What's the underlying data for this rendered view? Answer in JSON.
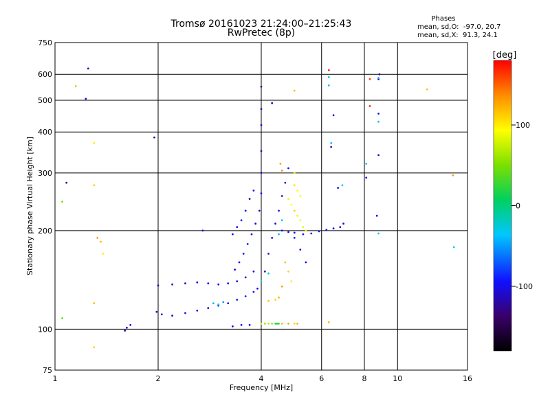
{
  "header": {
    "title_line1": "Tromsø 20161023 21:24:00–21:25:43",
    "title_line2": "RwPretec (8p)"
  },
  "phases": {
    "heading": "Phases",
    "o_line": "mean, sd,O:  -97.0, 20.7",
    "x_line": "mean, sd,X:  91.3, 24.1"
  },
  "chart_data": {
    "type": "scatter",
    "title": "Tromsø 20161023 21:24:00–21:25:43",
    "subtitle": "RwPretec (8p)",
    "xlabel": "Frequency [MHz]",
    "ylabel": "Stationary phase Virtual Height [km]",
    "x_scale": "log",
    "y_scale": "log",
    "xlim": [
      1,
      16
    ],
    "ylim": [
      75,
      750
    ],
    "x_ticks": [
      1,
      2,
      4,
      6,
      8,
      10,
      16
    ],
    "x_tick_labels": [
      "1",
      "2",
      "4",
      "6",
      "8",
      "10",
      "16"
    ],
    "y_ticks": [
      75,
      100,
      200,
      300,
      400,
      500,
      600,
      750
    ],
    "y_tick_labels": [
      "75",
      "100",
      "200",
      "300",
      "400",
      "500",
      "600",
      "750"
    ],
    "x_gridlines": [
      1,
      2,
      4,
      6,
      8,
      10,
      16
    ],
    "y_gridlines": [
      100,
      200,
      300,
      400,
      500,
      600
    ],
    "grid": true,
    "colorbar": {
      "label": "[deg]",
      "range": [
        -180,
        180
      ],
      "ticks": [
        100,
        0,
        -100
      ],
      "tick_labels": [
        "100",
        "0",
        "-100"
      ]
    },
    "series": [
      {
        "mode": "O",
        "color_hint": "blue",
        "points": [
          [
            1.6,
            99,
            -120
          ],
          [
            1.62,
            101,
            -110
          ],
          [
            1.66,
            103,
            -95
          ],
          [
            1.98,
            113,
            -110
          ],
          [
            2.05,
            111,
            -100
          ],
          [
            2.2,
            110,
            -105
          ],
          [
            2.4,
            112,
            -100
          ],
          [
            2.6,
            114,
            -95
          ],
          [
            2.8,
            116,
            -100
          ],
          [
            3.0,
            118,
            -90
          ],
          [
            3.2,
            120,
            -95
          ],
          [
            3.4,
            123,
            -100
          ],
          [
            3.6,
            126,
            -90
          ],
          [
            3.8,
            130,
            -95
          ],
          [
            3.9,
            133,
            -100
          ],
          [
            2.0,
            136,
            -100
          ],
          [
            2.2,
            137,
            -110
          ],
          [
            2.4,
            138,
            -105
          ],
          [
            2.6,
            139,
            -100
          ],
          [
            2.8,
            138,
            -95
          ],
          [
            3.0,
            137,
            -100
          ],
          [
            3.2,
            138,
            -90
          ],
          [
            3.4,
            140,
            -100
          ],
          [
            3.6,
            144,
            -110
          ],
          [
            3.8,
            150,
            -95
          ],
          [
            3.35,
            152,
            -100
          ],
          [
            3.45,
            160,
            -105
          ],
          [
            3.55,
            170,
            -100
          ],
          [
            3.65,
            182,
            -90
          ],
          [
            3.75,
            195,
            -100
          ],
          [
            3.85,
            210,
            -110
          ],
          [
            3.95,
            230,
            -100
          ],
          [
            4.0,
            260,
            -95
          ],
          [
            4.0,
            300,
            -100
          ],
          [
            4.0,
            350,
            -110
          ],
          [
            4.0,
            420,
            -100
          ],
          [
            4.0,
            470,
            -120
          ],
          [
            4.0,
            550,
            -130
          ],
          [
            3.3,
            195,
            -105
          ],
          [
            3.4,
            205,
            -100
          ],
          [
            3.5,
            215,
            -90
          ],
          [
            3.6,
            230,
            -100
          ],
          [
            3.7,
            250,
            -110
          ],
          [
            3.8,
            265,
            -100
          ],
          [
            4.1,
            150,
            -100
          ],
          [
            4.2,
            170,
            -95
          ],
          [
            4.3,
            190,
            -100
          ],
          [
            4.4,
            210,
            -105
          ],
          [
            4.5,
            230,
            -100
          ],
          [
            4.6,
            255,
            -110
          ],
          [
            4.7,
            280,
            -100
          ],
          [
            4.8,
            310,
            -95
          ],
          [
            4.6,
            200,
            -100
          ],
          [
            4.8,
            198,
            -105
          ],
          [
            5.0,
            197,
            -100
          ],
          [
            5.3,
            195,
            -95
          ],
          [
            5.6,
            196,
            -100
          ],
          [
            5.9,
            199,
            -105
          ],
          [
            6.2,
            201,
            -100
          ],
          [
            6.5,
            203,
            -95
          ],
          [
            6.8,
            205,
            -100
          ],
          [
            6.95,
            210,
            -110
          ],
          [
            5.0,
            190,
            -90
          ],
          [
            5.2,
            175,
            -95
          ],
          [
            5.4,
            160,
            -100
          ],
          [
            3.5,
            103,
            -100
          ],
          [
            3.7,
            103,
            -110
          ],
          [
            3.3,
            102,
            -105
          ],
          [
            1.08,
            280,
            -120
          ],
          [
            1.25,
            625,
            -110
          ],
          [
            1.23,
            505,
            -100
          ],
          [
            1.95,
            385,
            -120
          ],
          [
            2.7,
            200,
            -100
          ],
          [
            4.3,
            490,
            -110
          ],
          [
            6.5,
            450,
            -100
          ],
          [
            6.4,
            360,
            -110
          ],
          [
            6.7,
            270,
            -95
          ],
          [
            8.1,
            290,
            -100
          ],
          [
            8.8,
            340,
            -110
          ],
          [
            8.8,
            455,
            -100
          ],
          [
            8.8,
            580,
            -120
          ],
          [
            8.7,
            222,
            -100
          ],
          [
            8.85,
            600,
            -130
          ]
        ]
      },
      {
        "mode": "X",
        "color_hint": "yellow-orange",
        "points": [
          [
            4.55,
            320,
            130
          ],
          [
            4.6,
            305,
            135
          ],
          [
            4.8,
            250,
            100
          ],
          [
            4.9,
            240,
            95
          ],
          [
            5.0,
            230,
            110
          ],
          [
            5.1,
            222,
            100
          ],
          [
            5.2,
            215,
            90
          ],
          [
            5.3,
            205,
            85
          ],
          [
            5.4,
            200,
            100
          ],
          [
            4.7,
            160,
            120
          ],
          [
            4.8,
            150,
            110
          ],
          [
            4.9,
            140,
            100
          ],
          [
            4.6,
            135,
            130
          ],
          [
            4.5,
            125,
            120
          ],
          [
            4.4,
            123,
            110
          ],
          [
            4.2,
            122,
            115
          ],
          [
            5.0,
            275,
            105
          ],
          [
            5.1,
            265,
            95
          ],
          [
            5.2,
            255,
            90
          ],
          [
            5.0,
            300,
            100
          ],
          [
            4.0,
            104,
            80
          ],
          [
            4.1,
            104,
            60
          ],
          [
            4.2,
            104,
            70
          ],
          [
            4.3,
            104,
            60
          ],
          [
            4.6,
            104,
            120
          ],
          [
            4.8,
            104,
            130
          ],
          [
            5.0,
            104,
            110
          ],
          [
            5.1,
            104,
            125
          ],
          [
            1.3,
            370,
            100
          ],
          [
            1.3,
            275,
            110
          ],
          [
            1.33,
            190,
            130
          ],
          [
            1.36,
            185,
            120
          ],
          [
            1.38,
            170,
            100
          ],
          [
            1.3,
            120,
            120
          ],
          [
            1.3,
            88,
            110
          ],
          [
            1.15,
            552,
            60
          ],
          [
            1.05,
            245,
            50
          ],
          [
            1.05,
            108,
            40
          ],
          [
            5.0,
            535,
            120
          ],
          [
            12.2,
            540,
            120
          ],
          [
            14.5,
            295,
            130
          ],
          [
            6.3,
            618,
            170
          ],
          [
            6.3,
            105,
            120
          ],
          [
            8.3,
            580,
            160
          ],
          [
            8.3,
            480,
            170
          ]
        ]
      },
      {
        "mode": "mixed",
        "color_hint": "cyan-green",
        "points": [
          [
            2.9,
            120,
            -40
          ],
          [
            3.0,
            119,
            -30
          ],
          [
            3.1,
            121,
            -50
          ],
          [
            4.0,
            140,
            -30
          ],
          [
            4.2,
            148,
            -20
          ],
          [
            4.5,
            195,
            -40
          ],
          [
            4.6,
            215,
            -30
          ],
          [
            4.4,
            104,
            20
          ],
          [
            4.45,
            104,
            10
          ],
          [
            4.5,
            104,
            30
          ],
          [
            6.3,
            588,
            -30
          ],
          [
            6.3,
            555,
            -40
          ],
          [
            8.8,
            430,
            -30
          ],
          [
            8.8,
            585,
            -40
          ],
          [
            8.8,
            196,
            -35
          ],
          [
            14.6,
            178,
            -30
          ],
          [
            6.4,
            370,
            -40
          ],
          [
            6.9,
            275,
            -35
          ],
          [
            8.1,
            320,
            -40
          ]
        ]
      }
    ]
  }
}
